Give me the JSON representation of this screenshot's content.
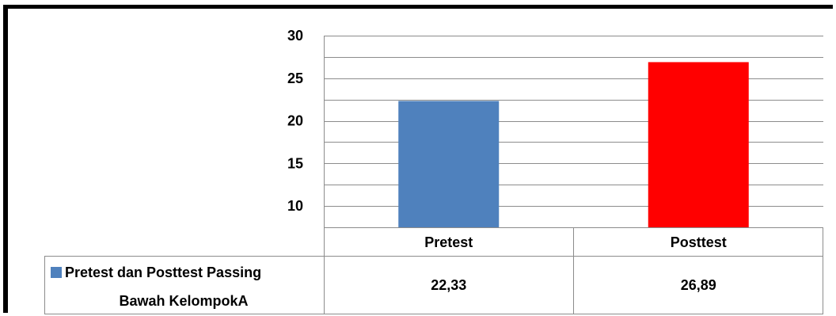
{
  "chart_data": {
    "type": "bar",
    "categories": [
      "Pretest",
      "Posttest"
    ],
    "series": [
      {
        "name": "Pretest dan Posttest Passing Bawah KelompokA",
        "values": [
          22.33,
          26.89
        ],
        "value_labels": [
          "22,33",
          "26,89"
        ]
      }
    ],
    "bar_colors": [
      "#4F81BD",
      "#FF0000"
    ],
    "legend_color": "#4F81BD",
    "y_ticks": [
      "10",
      "15",
      "20",
      "25",
      "30"
    ],
    "ylim": [
      7.5,
      30
    ],
    "y_gridlines": [
      10,
      12.5,
      15,
      17.5,
      20,
      22.5,
      25,
      27.5,
      30
    ],
    "grid": true,
    "title": "",
    "xlabel": "",
    "ylabel": "",
    "legend_position": "bottom-left data table"
  }
}
